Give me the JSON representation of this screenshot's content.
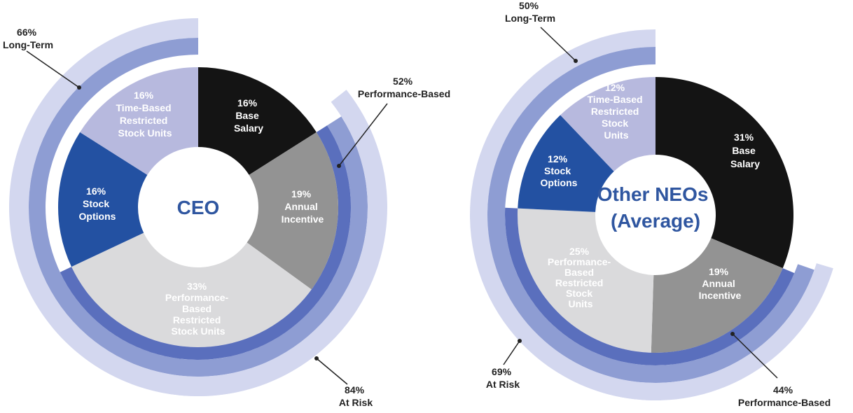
{
  "colors": {
    "base_salary": "#141414",
    "annual_incentive": "#939393",
    "perf_rsu": "#dadadc",
    "stock_options": "#2351a2",
    "time_rsu": "#b7b9de",
    "performance_ring": "#5a6fbd",
    "at_risk_ring": "#8e9dd3",
    "long_term_ring": "#d3d7ef",
    "center_title": "#2f56a0",
    "light_text": "#ffffff"
  },
  "chart_data": [
    {
      "type": "pie",
      "title": "CEO",
      "segments": [
        {
          "key": "base_salary",
          "pct": "16%",
          "lines": [
            "Base",
            "Salary"
          ],
          "value": 16
        },
        {
          "key": "annual_incentive",
          "pct": "19%",
          "lines": [
            "Annual",
            "Incentive"
          ],
          "value": 19
        },
        {
          "key": "perf_rsu",
          "pct": "33%",
          "lines": [
            "Performance-",
            "Based",
            "Restricted",
            "Stock Units"
          ],
          "value": 33
        },
        {
          "key": "stock_options",
          "pct": "16%",
          "lines": [
            "Stock",
            "Options"
          ],
          "value": 16
        },
        {
          "key": "time_rsu",
          "pct": "16%",
          "lines": [
            "Time-Based",
            "Restricted",
            "Stock Units"
          ],
          "value": 16
        }
      ],
      "rings": [
        {
          "key": "performance_ring",
          "pct": "52%",
          "label": "Performance-Based",
          "value": 52
        },
        {
          "key": "at_risk_ring",
          "pct": "84%",
          "label": "At Risk",
          "value": 84
        },
        {
          "key": "long_term_ring",
          "pct": "66%",
          "label": "Long-Term",
          "value": 66
        }
      ]
    },
    {
      "type": "pie",
      "title": "Other NEOs (Average)",
      "title_lines": [
        "Other NEOs",
        "(Average)"
      ],
      "segments": [
        {
          "key": "base_salary",
          "pct": "31%",
          "lines": [
            "Base",
            "Salary"
          ],
          "value": 31
        },
        {
          "key": "annual_incentive",
          "pct": "19%",
          "lines": [
            "Annual",
            "Incentive"
          ],
          "value": 19
        },
        {
          "key": "perf_rsu",
          "pct": "25%",
          "lines": [
            "Performance-",
            "Based",
            "Restricted",
            "Stock",
            "Units"
          ],
          "value": 25
        },
        {
          "key": "stock_options",
          "pct": "12%",
          "lines": [
            "Stock",
            "Options"
          ],
          "value": 12
        },
        {
          "key": "time_rsu",
          "pct": "12%",
          "lines": [
            "Time-Based",
            "Restricted",
            "Stock",
            "Units"
          ],
          "value": 12
        }
      ],
      "rings": [
        {
          "key": "performance_ring",
          "pct": "44%",
          "label": "Performance-Based",
          "value": 44
        },
        {
          "key": "at_risk_ring",
          "pct": "69%",
          "label": "At Risk",
          "value": 69
        },
        {
          "key": "long_term_ring",
          "pct": "50%",
          "label": "Long-Term",
          "value": 50
        }
      ]
    }
  ]
}
